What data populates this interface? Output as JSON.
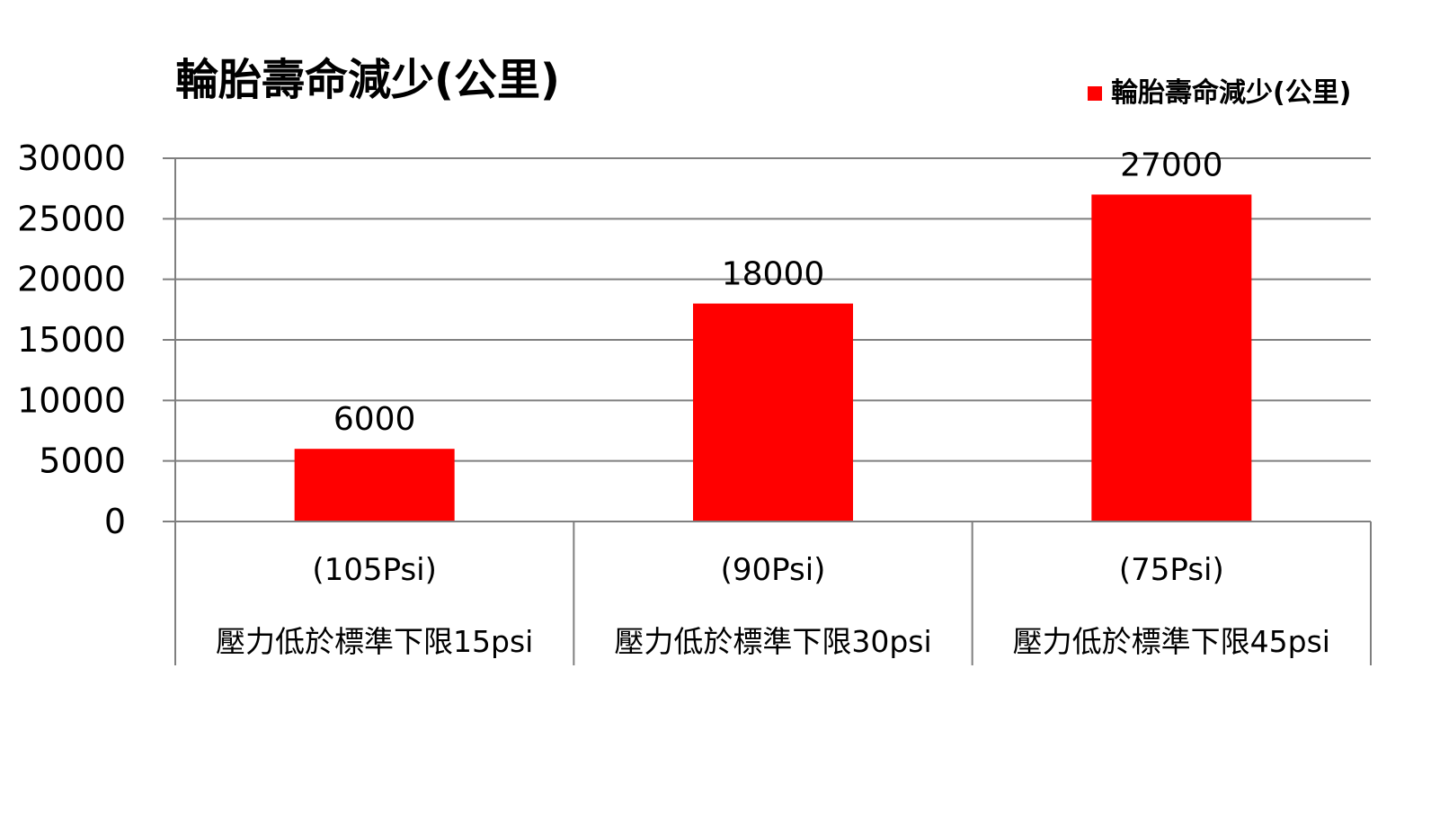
{
  "chart_data": {
    "type": "bar",
    "title": "輪胎壽命減少(公里)",
    "legend": {
      "label": "輪胎壽命減少(公里)",
      "position": "top-right"
    },
    "categories": [
      {
        "line1": "(105Psi)",
        "line2": "壓力低於標準下限15psi"
      },
      {
        "line1": "(90Psi)",
        "line2": "壓力低於標準下限30psi"
      },
      {
        "line1": "(75Psi)",
        "line2": "壓力低於標準下限45psi"
      }
    ],
    "series": [
      {
        "name": "輪胎壽命減少(公里)",
        "values": [
          6000,
          18000,
          27000
        ]
      }
    ],
    "data_labels": [
      "6000",
      "18000",
      "27000"
    ],
    "yticks": [
      "0",
      "5000",
      "10000",
      "15000",
      "20000",
      "25000",
      "30000"
    ],
    "ylim": [
      0,
      30000
    ],
    "grid": true,
    "colors": {
      "bar": "#FF0000",
      "grid": "#7f7f7f",
      "axis": "#7f7f7f"
    }
  }
}
